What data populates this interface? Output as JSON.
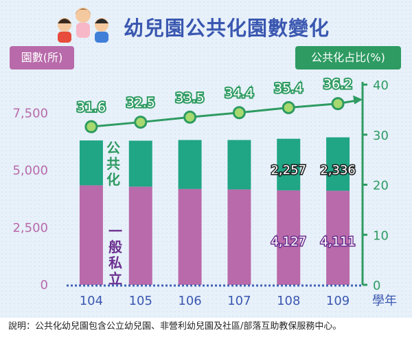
{
  "title": "幼兒園公共化園數變化",
  "left_axis_badge": "園數(所)",
  "right_axis_badge": "公共化占比(%)",
  "footnote": "說明：公共化幼兒園包含公立幼兒園、非營利幼兒園及社區/部落互助教保服務中心。",
  "colors": {
    "private": "#b86aaa",
    "public": "#20a585",
    "line": "#2e9b62",
    "marker_fill": "#a7d96f",
    "left_tick": "#b86aaa",
    "public_label": "#2e9b62",
    "private_label": "#6b2f8f",
    "baseline": "#3f63b5"
  },
  "chart_data": {
    "type": "bar+line",
    "categories": [
      "104",
      "105",
      "106",
      "107",
      "108",
      "109"
    ],
    "x_unit": "學年",
    "series": [
      {
        "name": "一般私立",
        "type": "bar",
        "axis": "left",
        "values": [
          4350,
          4290,
          4190,
          4170,
          4127,
          4111
        ]
      },
      {
        "name": "公共化",
        "type": "bar",
        "axis": "left",
        "values": [
          1960,
          2010,
          2140,
          2160,
          2257,
          2336
        ]
      },
      {
        "name": "公共化占比(%)",
        "type": "line",
        "axis": "right",
        "values": [
          31.6,
          32.5,
          33.5,
          34.4,
          35.4,
          36.2
        ]
      }
    ],
    "bar_labels": {
      "private": [
        "",
        "",
        "",
        "",
        "4,127",
        "4,111"
      ],
      "public": [
        "",
        "",
        "",
        "",
        "2,257",
        "2,336"
      ]
    },
    "line_labels": [
      "31.6",
      "32.5",
      "33.5",
      "34.4",
      "35.4",
      "36.2"
    ],
    "in_chart_labels": {
      "public": "公共化",
      "private": "一般私立"
    },
    "left_axis": {
      "ticks": [
        0,
        2500,
        5000,
        7500
      ],
      "tick_labels": [
        "0",
        "2,500",
        "5,000",
        "7,500"
      ],
      "range": [
        0,
        8750
      ]
    },
    "right_axis": {
      "ticks": [
        0,
        10,
        20,
        30,
        40
      ],
      "tick_labels": [
        "0",
        "10",
        "20",
        "30",
        "40"
      ],
      "range": [
        0,
        40
      ]
    },
    "grid": false
  }
}
